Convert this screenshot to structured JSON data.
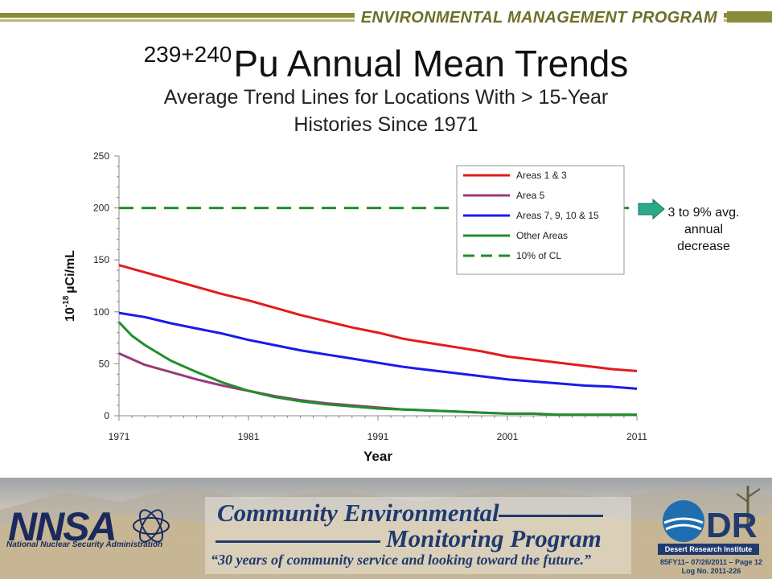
{
  "header": {
    "program": "ENVIRONMENTAL MANAGEMENT PROGRAM",
    "title_sup": "239+240",
    "title_main": "Pu Annual Mean Trends",
    "subtitle_line1": "Average Trend Lines for Locations With > 15-Year",
    "subtitle_line2": "Histories Since 1971"
  },
  "chart_data": {
    "type": "line",
    "title": "",
    "xlabel": "Year",
    "ylabel_prefix": "10",
    "ylabel_exp": "-18",
    "ylabel_unit": "µCi/mL",
    "xlim": [
      1971,
      2011
    ],
    "ylim": [
      0,
      250
    ],
    "x_ticks": [
      1971,
      1981,
      1991,
      2001,
      2011
    ],
    "y_ticks": [
      0,
      50,
      100,
      150,
      200,
      250
    ],
    "grid": false,
    "legend_position": "top-right",
    "series": [
      {
        "name": "Areas 1 & 3",
        "color": "#e41a1c",
        "dash": false,
        "x": [
          1971,
          1973,
          1975,
          1977,
          1979,
          1981,
          1983,
          1985,
          1987,
          1989,
          1991,
          1993,
          1995,
          1997,
          1999,
          2001,
          2003,
          2005,
          2007,
          2009,
          2011
        ],
        "values": [
          145,
          138,
          131,
          124,
          117,
          111,
          104,
          97,
          91,
          85,
          80,
          74,
          70,
          66,
          62,
          57,
          54,
          51,
          48,
          45,
          43
        ]
      },
      {
        "name": "Area 5",
        "color": "#9b3a7a",
        "dash": false,
        "x": [
          1971,
          1973,
          1975,
          1977,
          1979,
          1981,
          1983,
          1985,
          1987,
          1989,
          1991,
          1993,
          1995,
          1997,
          1999,
          2001,
          2003,
          2005,
          2007,
          2009,
          2011
        ],
        "values": [
          60,
          49,
          42,
          35,
          29,
          24,
          19,
          15,
          12,
          10,
          8,
          6,
          5,
          4,
          3,
          2,
          2,
          1,
          1,
          1,
          1
        ]
      },
      {
        "name": "Areas 7, 9, 10 & 15",
        "color": "#1a1aee",
        "dash": false,
        "x": [
          1971,
          1973,
          1975,
          1977,
          1979,
          1981,
          1983,
          1985,
          1987,
          1989,
          1991,
          1993,
          1995,
          1997,
          1999,
          2001,
          2003,
          2005,
          2007,
          2009,
          2011
        ],
        "values": [
          99,
          95,
          89,
          84,
          79,
          73,
          68,
          63,
          59,
          55,
          51,
          47,
          44,
          41,
          38,
          35,
          33,
          31,
          29,
          28,
          26
        ]
      },
      {
        "name": "Other Areas",
        "color": "#1f8f2a",
        "dash": false,
        "x": [
          1971,
          1972,
          1973,
          1975,
          1977,
          1979,
          1981,
          1983,
          1985,
          1987,
          1989,
          1991,
          1993,
          1995,
          1997,
          1999,
          2001,
          2003,
          2005,
          2007,
          2009,
          2011
        ],
        "values": [
          90,
          77,
          68,
          53,
          42,
          32,
          24,
          18,
          14,
          11,
          9,
          7,
          6,
          5,
          4,
          3,
          2,
          2,
          1,
          1,
          1,
          1
        ]
      },
      {
        "name": "10% of CL",
        "color": "#1f8f2a",
        "dash": true,
        "x": [
          1971,
          2011
        ],
        "values": [
          200,
          200
        ]
      }
    ],
    "annotation": {
      "line1": "3 to 9% avg.",
      "line2": "annual",
      "line3": "decrease",
      "arrow_color": "#2aaa8a"
    }
  },
  "footer": {
    "nnsa_caption": "National Nuclear Security Administration",
    "cemp_line1": "Community Environmental",
    "cemp_line2": "Monitoring Program",
    "tagline": "“30 years of community service and looking toward the future.”",
    "dri_caption": "Desert Research Institute",
    "page_ref": "85FY11– 07/26/2011 – Page 12",
    "log_no": "Log No. 2011-226"
  }
}
